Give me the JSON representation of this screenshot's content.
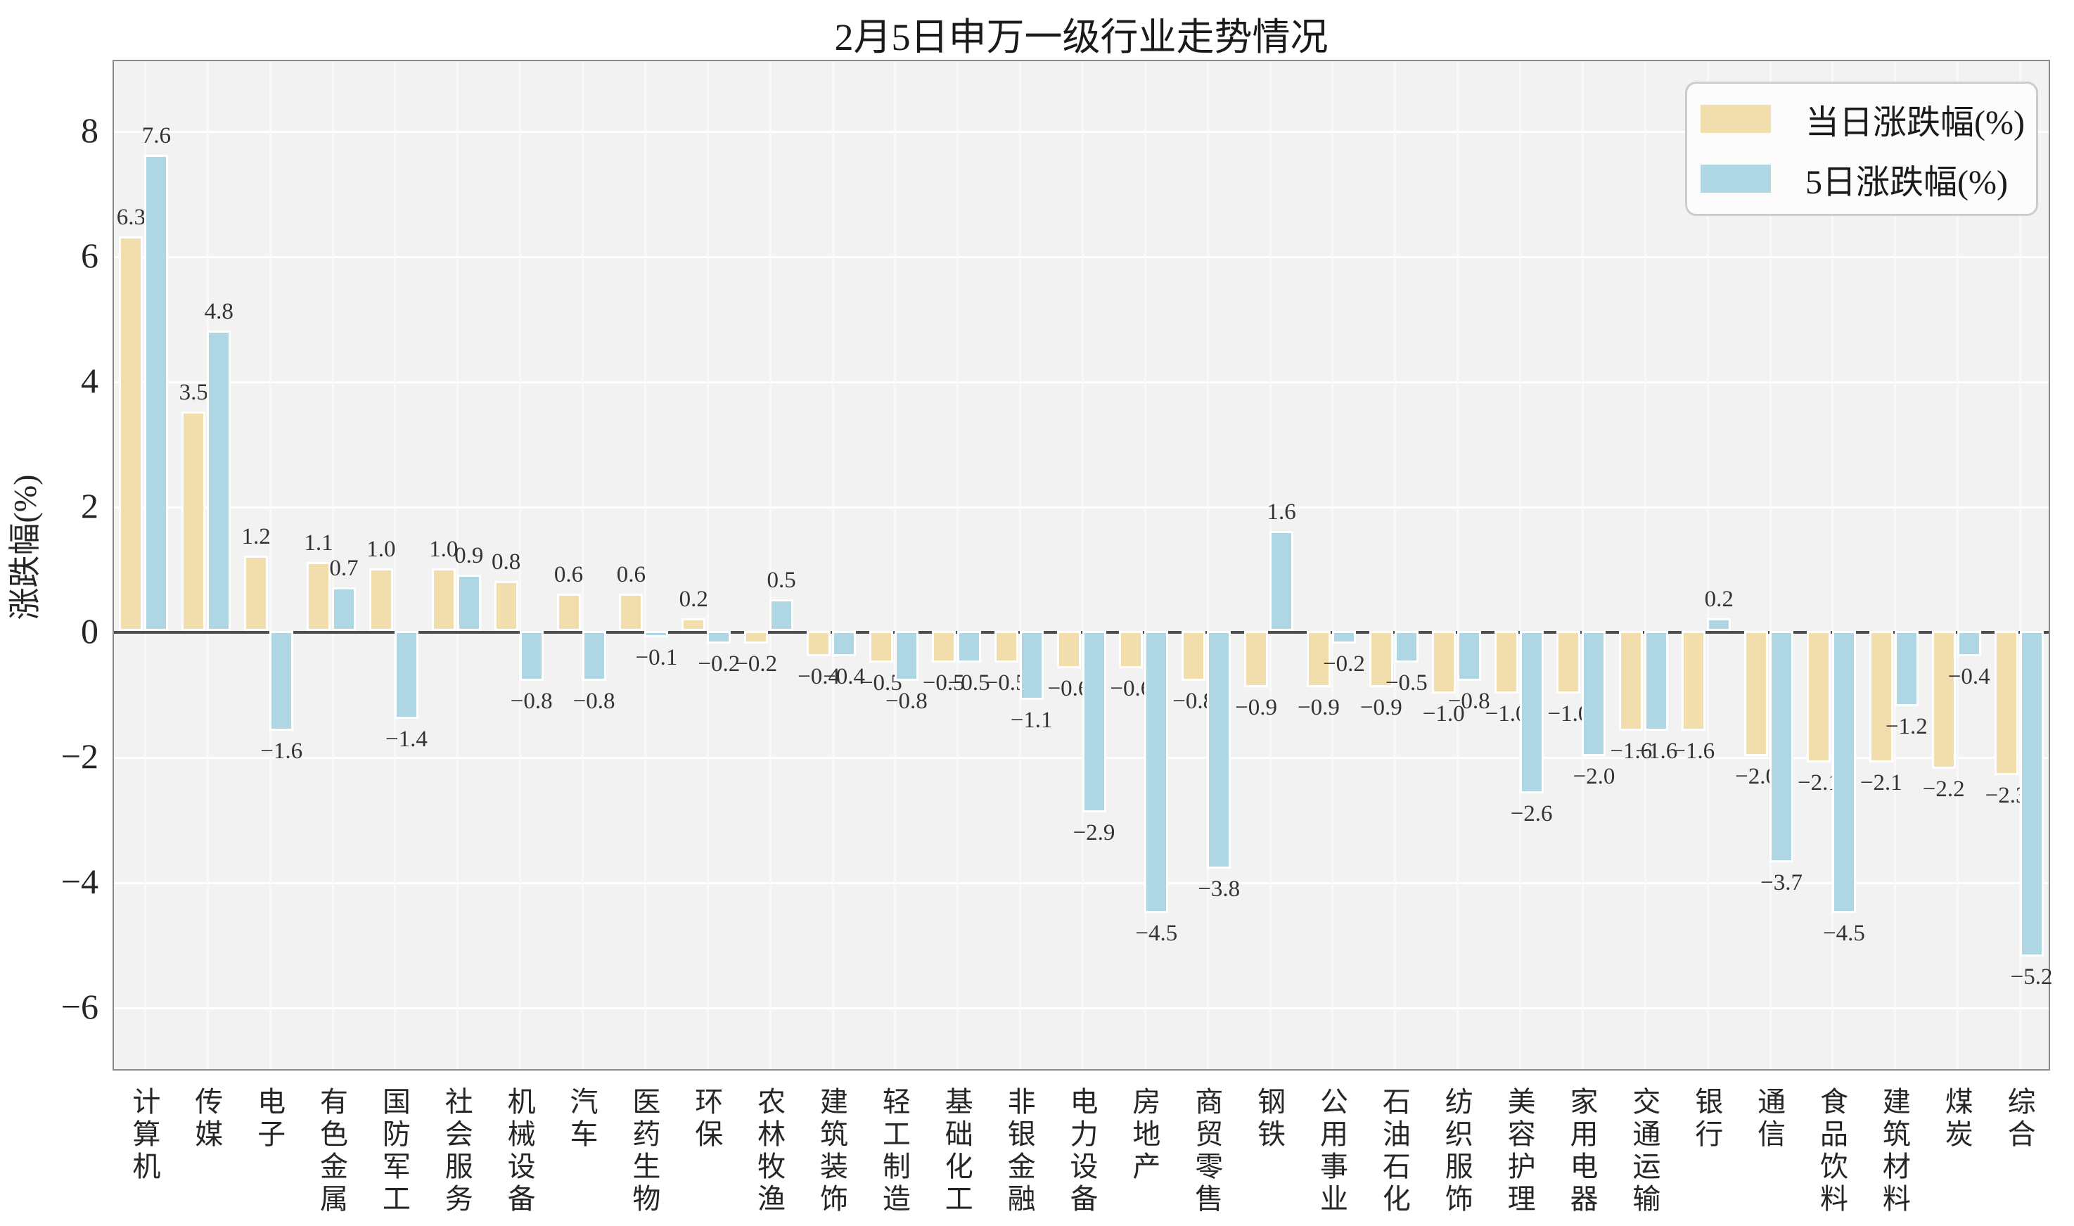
{
  "chart_data": {
    "type": "bar",
    "title": "2月5日申万一级行业走势情况",
    "xlabel": "",
    "ylabel": "涨跌幅(%)",
    "categories": [
      "计算机",
      "传媒",
      "电子",
      "有色金属",
      "国防军工",
      "社会服务",
      "机械设备",
      "汽车",
      "医药生物",
      "环保",
      "农林牧渔",
      "建筑装饰",
      "轻工制造",
      "基础化工",
      "非银金融",
      "电力设备",
      "房地产",
      "商贸零售",
      "钢铁",
      "公用事业",
      "石油石化",
      "纺织服饰",
      "美容护理",
      "家用电器",
      "交通运输",
      "银行",
      "通信",
      "食品饮料",
      "建筑材料",
      "煤炭",
      "综合"
    ],
    "series": [
      {
        "name": "当日涨跌幅(%)",
        "color": "#f2ddad",
        "values": [
          6.3,
          3.5,
          1.2,
          1.1,
          1.0,
          1.0,
          0.8,
          0.6,
          0.6,
          0.2,
          -0.2,
          -0.4,
          -0.5,
          -0.5,
          -0.5,
          -0.6,
          -0.6,
          -0.8,
          -0.9,
          -0.9,
          -0.9,
          -1.0,
          -1.0,
          -1.0,
          -1.6,
          -1.6,
          -2.0,
          -2.1,
          -2.1,
          -2.2,
          -2.3
        ]
      },
      {
        "name": "5日涨跌幅(%)",
        "color": "#aed6e3",
        "values": [
          7.6,
          4.8,
          -1.6,
          0.7,
          -1.4,
          0.9,
          -0.8,
          -0.8,
          -0.1,
          -0.2,
          0.5,
          -0.4,
          -0.8,
          -0.5,
          -1.1,
          -2.9,
          -4.5,
          -3.8,
          1.6,
          -0.2,
          -0.5,
          -0.8,
          -2.6,
          -2.0,
          -1.6,
          0.2,
          -3.7,
          -4.5,
          -1.2,
          -0.4,
          -5.2
        ]
      }
    ],
    "yticks": [
      8,
      6,
      4,
      2,
      0,
      -2,
      -4,
      -6
    ],
    "ylim": [
      -7.02,
      9.12
    ],
    "grid": true,
    "legend_position": "upper right",
    "bar_value_labels": true,
    "plot_bg_color": "#f2f2f2",
    "grid_color": "#ffffff",
    "zero_line_color": "#4d4d4d",
    "spine_color": "#8a8a8a",
    "value_label_color": "#333333"
  }
}
